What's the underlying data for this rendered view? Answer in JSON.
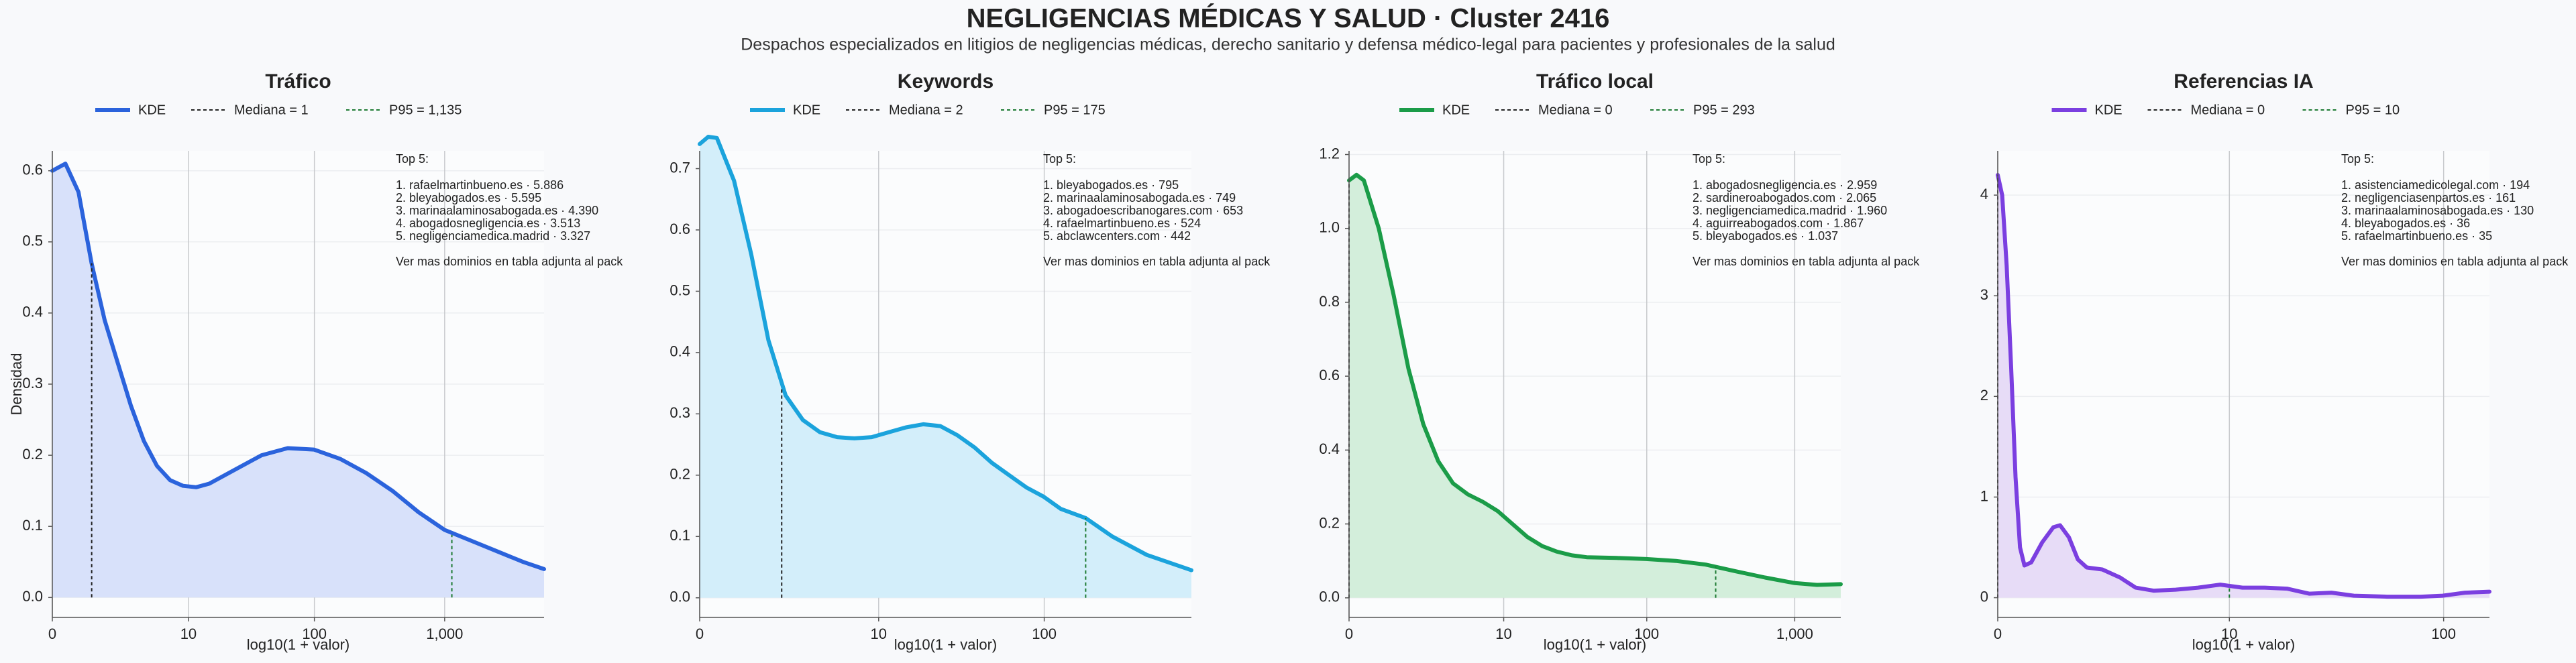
{
  "header": {
    "title": "NEGLIGENCIAS MÉDICAS Y SALUD · Cluster 2416",
    "subtitle": "Despachos especializados en litigios de negligencias médicas, derecho sanitario y defensa médico‑legal para pacientes y profesionales de la salud"
  },
  "chart_data": [
    {
      "type": "area",
      "title": "Tráfico",
      "x_label": "log10(1 + valor)",
      "y_label": "Densidad",
      "x": [
        0,
        0.1,
        0.2,
        0.3,
        0.4,
        0.5,
        0.6,
        0.7,
        0.8,
        0.9,
        1.0,
        1.1,
        1.2,
        1.4,
        1.6,
        1.8,
        2.0,
        2.2,
        2.4,
        2.6,
        2.8,
        3.0,
        3.2,
        3.4,
        3.6,
        3.76
      ],
      "series": [
        {
          "name": "KDE",
          "color": "#2b63dc",
          "fill": "#d8e1fa",
          "values": [
            0.6,
            0.61,
            0.57,
            0.47,
            0.39,
            0.33,
            0.27,
            0.22,
            0.185,
            0.165,
            0.157,
            0.155,
            0.16,
            0.18,
            0.2,
            0.21,
            0.208,
            0.195,
            0.175,
            0.15,
            0.12,
            0.095,
            0.08,
            0.065,
            0.05,
            0.04
          ]
        }
      ],
      "reference_lines": [
        {
          "label": "Mediana = 1",
          "x": 0.301,
          "y": 0.47,
          "color": "#222222"
        },
        {
          "label": "P95 = 1,135",
          "x": 3.055,
          "y": 0.088,
          "color": "#1e7b33"
        }
      ],
      "xlim": [
        0,
        3.76
      ],
      "ylim": [
        -0.028,
        0.628
      ],
      "xticks": [
        0,
        {
          "value": 1.041,
          "label": "10"
        },
        {
          "value": 2.004,
          "label": "100"
        },
        {
          "value": 3.0,
          "label": "1,000"
        }
      ],
      "yticks": [
        {
          "value": 0,
          "label": "0.0"
        },
        0.1,
        0.2,
        0.3,
        0.4,
        0.5,
        0.6
      ],
      "grid": true,
      "annotation": {
        "heading": "Top 5:",
        "items": [
          "1. rafaelmartinbueno.es · 5.886",
          "2. bleyabogados.es · 5.595",
          "3. marinaalaminosabogada.es · 4.390",
          "4. abogadosnegligencia.es · 3.513",
          "5. negligenciamedica.madrid · 3.327"
        ],
        "footer": "Ver mas dominios en tabla adjunta al pack"
      }
    },
    {
      "type": "area",
      "title": "Keywords",
      "x_label": "log10(1 + valor)",
      "x": [
        0,
        0.05,
        0.1,
        0.2,
        0.3,
        0.4,
        0.5,
        0.6,
        0.7,
        0.8,
        0.9,
        1.0,
        1.1,
        1.2,
        1.3,
        1.4,
        1.5,
        1.6,
        1.7,
        1.8,
        1.9,
        2.0,
        2.1,
        2.245,
        2.4,
        2.6,
        2.86
      ],
      "series": [
        {
          "name": "KDE",
          "color": "#1ba3dc",
          "fill": "#d3eefa",
          "values": [
            0.74,
            0.752,
            0.75,
            0.68,
            0.56,
            0.42,
            0.33,
            0.29,
            0.27,
            0.262,
            0.26,
            0.262,
            0.27,
            0.278,
            0.283,
            0.28,
            0.265,
            0.245,
            0.22,
            0.2,
            0.18,
            0.165,
            0.145,
            0.13,
            0.1,
            0.07,
            0.045
          ]
        }
      ],
      "reference_lines": [
        {
          "label": "Mediana = 2",
          "x": 0.477,
          "y": 0.34,
          "color": "#222222"
        },
        {
          "label": "P95 = 175",
          "x": 2.245,
          "y": 0.13,
          "color": "#1e7b33"
        }
      ],
      "xlim": [
        0,
        2.86
      ],
      "ylim": [
        -0.032,
        0.729
      ],
      "xticks": [
        0,
        {
          "value": 1.041,
          "label": "10"
        },
        {
          "value": 2.004,
          "label": "100"
        }
      ],
      "yticks": [
        {
          "value": 0,
          "label": "0.0"
        },
        0.1,
        0.2,
        0.3,
        0.4,
        0.5,
        0.6,
        0.7
      ],
      "grid": true,
      "annotation": {
        "heading": "Top 5:",
        "items": [
          "1. bleyabogados.es · 795",
          "2. marinaalaminosabogada.es · 749",
          "3. abogadoescribanogares.com · 653",
          "4. rafaelmartinbueno.es · 524",
          "5. abclawcenters.com · 442"
        ],
        "footer": "Ver mas dominios en tabla adjunta al pack"
      }
    },
    {
      "type": "area",
      "title": "Tráfico local",
      "x_label": "log10(1 + valor)",
      "x": [
        0,
        0.05,
        0.1,
        0.2,
        0.3,
        0.4,
        0.5,
        0.6,
        0.7,
        0.8,
        0.9,
        1.0,
        1.1,
        1.2,
        1.3,
        1.4,
        1.5,
        1.6,
        1.8,
        2.0,
        2.2,
        2.4,
        2.6,
        2.8,
        3.0,
        3.15,
        3.31
      ],
      "series": [
        {
          "name": "KDE",
          "color": "#1b9c48",
          "fill": "#d3eedb",
          "values": [
            1.13,
            1.145,
            1.13,
            1.0,
            0.82,
            0.62,
            0.47,
            0.37,
            0.31,
            0.28,
            0.26,
            0.235,
            0.2,
            0.165,
            0.14,
            0.125,
            0.115,
            0.11,
            0.108,
            0.105,
            0.1,
            0.09,
            0.072,
            0.055,
            0.04,
            0.035,
            0.037
          ]
        }
      ],
      "reference_lines": [
        {
          "label": "Mediana = 0",
          "x": 0,
          "y": 1.13,
          "color": "#222222"
        },
        {
          "label": "P95 = 293",
          "x": 2.468,
          "y": 0.085,
          "color": "#1e7b33"
        }
      ],
      "xlim": [
        0,
        3.31
      ],
      "ylim": [
        -0.053,
        1.21
      ],
      "xticks": [
        0,
        {
          "value": 1.041,
          "label": "10"
        },
        {
          "value": 2.004,
          "label": "100"
        },
        {
          "value": 3.0,
          "label": "1,000"
        }
      ],
      "yticks": [
        {
          "value": 0,
          "label": "0.0"
        },
        0.2,
        0.4,
        0.6,
        0.8,
        {
          "value": 1,
          "label": "1.0"
        },
        1.2
      ],
      "grid": true,
      "annotation": {
        "heading": "Top 5:",
        "items": [
          "1. abogadosnegligencia.es · 2.959",
          "2. sardineroabogados.com · 2.065",
          "3. negligenciamedica.madrid · 1.960",
          "4. aguirreabogados.com · 1.867",
          "5. bleyabogados.es · 1.037"
        ],
        "footer": "Ver mas dominios en tabla adjunta al pack"
      }
    },
    {
      "type": "area",
      "title": "Referencias IA",
      "x_label": "log10(1 + valor)",
      "x": [
        0,
        0.02,
        0.04,
        0.06,
        0.08,
        0.1,
        0.12,
        0.15,
        0.2,
        0.25,
        0.28,
        0.32,
        0.36,
        0.4,
        0.47,
        0.55,
        0.62,
        0.7,
        0.8,
        0.9,
        1.0,
        1.1,
        1.2,
        1.3,
        1.4,
        1.5,
        1.6,
        1.75,
        1.9,
        2.0,
        2.1,
        2.21
      ],
      "series": [
        {
          "name": "KDE",
          "color": "#7b3fe0",
          "fill": "#e7dcf7",
          "values": [
            4.2,
            4.0,
            3.3,
            2.3,
            1.2,
            0.5,
            0.32,
            0.35,
            0.55,
            0.7,
            0.72,
            0.6,
            0.38,
            0.3,
            0.28,
            0.2,
            0.1,
            0.07,
            0.08,
            0.1,
            0.13,
            0.1,
            0.1,
            0.09,
            0.04,
            0.05,
            0.02,
            0.01,
            0.01,
            0.02,
            0.05,
            0.06
          ]
        }
      ],
      "reference_lines": [
        {
          "label": "Mediana = 0",
          "x": 0,
          "y": 4.2,
          "color": "#222222"
        },
        {
          "label": "P95 = 10",
          "x": 1.041,
          "y": 0.12,
          "color": "#1e7b33"
        }
      ],
      "xlim": [
        0,
        2.21
      ],
      "ylim": [
        -0.196,
        4.44
      ],
      "xticks": [
        0,
        {
          "value": 1.041,
          "label": "10"
        },
        {
          "value": 2.004,
          "label": "100"
        }
      ],
      "yticks": [
        0,
        1,
        2,
        3,
        4
      ],
      "grid": true,
      "annotation": {
        "heading": "Top 5:",
        "items": [
          "1. asistenciamedicolegal.com · 194",
          "2. negligenciasenpartos.es · 161",
          "3. marinaalaminosabogada.es · 130",
          "4. bleyabogados.es · 36",
          "5. rafaelmartinbueno.es · 35"
        ],
        "footer": "Ver mas dominios en tabla adjunta al pack"
      }
    }
  ]
}
